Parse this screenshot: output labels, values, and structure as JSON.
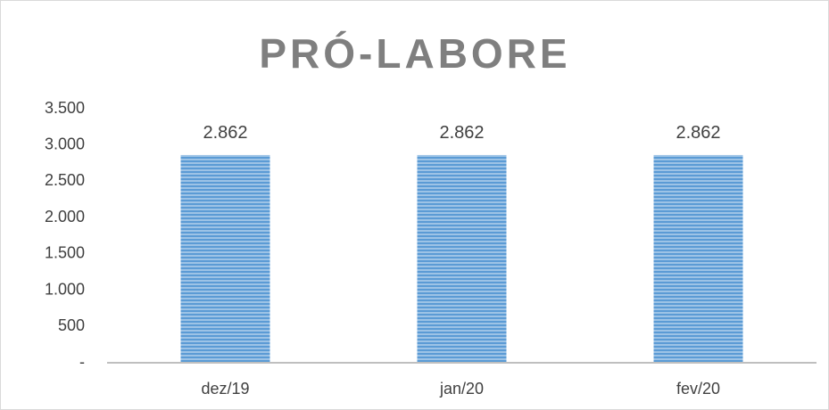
{
  "chart_data": {
    "type": "bar",
    "title": "PRÓ-LABORE",
    "categories": [
      "dez/19",
      "jan/20",
      "fev/20"
    ],
    "values": [
      2862,
      2862,
      2862
    ],
    "value_labels": [
      "2.862",
      "2.862",
      "2.862"
    ],
    "color": "#5b9bd5",
    "ylim": [
      0,
      3500
    ],
    "yticks": [
      {
        "value": 0,
        "label": "-"
      },
      500,
      {
        "value": 1000,
        "label": "1.000"
      },
      {
        "value": 1500,
        "label": "1.500"
      },
      {
        "value": 2000,
        "label": "2.000"
      },
      {
        "value": 2500,
        "label": "2.500"
      },
      {
        "value": 3000,
        "label": "3.000"
      },
      {
        "value": 3500,
        "label": "3.500"
      }
    ],
    "grid": false
  }
}
